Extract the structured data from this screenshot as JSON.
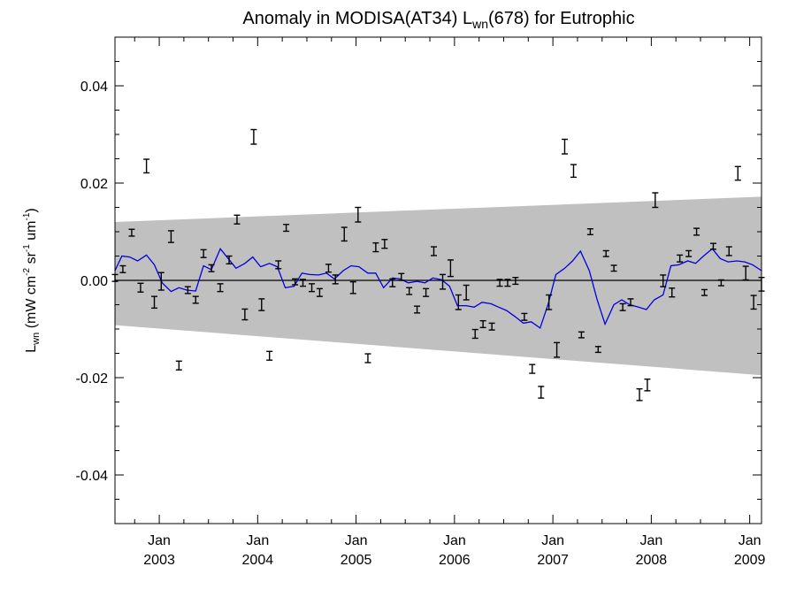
{
  "chart_data": {
    "type": "line",
    "title": {
      "prefix": "Anomaly in MODISA(AT34) L",
      "subscript": "wn",
      "suffix": "(678) for Eutrophic"
    },
    "ylabel": {
      "main": "L",
      "sub": "wn",
      "units": " (mW cm",
      "exp1": "-2",
      "u2": " sr",
      "exp2": "-1",
      "u3": " um",
      "exp3": "-1",
      "close": ")"
    },
    "xlim": [
      2002.55,
      2009.12
    ],
    "ylim": [
      -0.05,
      0.05
    ],
    "y_ticks": [
      {
        "value": 0.04,
        "label": "0.04"
      },
      {
        "value": 0.02,
        "label": "0.02"
      },
      {
        "value": 0.0,
        "label": "0.00"
      },
      {
        "value": -0.02,
        "label": "-0.02"
      },
      {
        "value": -0.04,
        "label": "-0.04"
      }
    ],
    "x_ticks": [
      {
        "value": 2003.0,
        "month": "Jan",
        "year": "2003"
      },
      {
        "value": 2004.0,
        "month": "Jan",
        "year": "2004"
      },
      {
        "value": 2005.0,
        "month": "Jan",
        "year": "2005"
      },
      {
        "value": 2006.0,
        "month": "Jan",
        "year": "2006"
      },
      {
        "value": 2007.0,
        "month": "Jan",
        "year": "2007"
      },
      {
        "value": 2008.0,
        "month": "Jan",
        "year": "2008"
      },
      {
        "value": 2009.0,
        "month": "Jan",
        "year": "2009"
      }
    ],
    "grid": false,
    "zero_line": 0.0,
    "band": {
      "x": [
        2002.55,
        2009.12
      ],
      "upper": [
        0.012,
        0.0172
      ],
      "lower": [
        -0.0092,
        -0.0195
      ],
      "color": "#c0c0c0"
    },
    "series": [
      {
        "type": "line",
        "color": "#0000dd",
        "x": [
          2002.55,
          2002.62,
          2002.7,
          2002.78,
          2002.87,
          2002.95,
          2003.03,
          2003.12,
          2003.2,
          2003.28,
          2003.37,
          2003.45,
          2003.53,
          2003.62,
          2003.7,
          2003.78,
          2003.87,
          2003.95,
          2004.03,
          2004.12,
          2004.2,
          2004.28,
          2004.37,
          2004.45,
          2004.53,
          2004.62,
          2004.7,
          2004.78,
          2004.87,
          2004.95,
          2005.03,
          2005.12,
          2005.2,
          2005.28,
          2005.37,
          2005.45,
          2005.53,
          2005.62,
          2005.7,
          2005.78,
          2005.87,
          2005.95,
          2006.03,
          2006.12,
          2006.2,
          2006.28,
          2006.37,
          2006.45,
          2006.53,
          2006.62,
          2006.7,
          2006.78,
          2006.87,
          2006.95,
          2007.03,
          2007.12,
          2007.2,
          2007.28,
          2007.37,
          2007.45,
          2007.53,
          2007.62,
          2007.7,
          2007.78,
          2007.87,
          2007.95,
          2008.03,
          2008.12,
          2008.2,
          2008.28,
          2008.37,
          2008.45,
          2008.53,
          2008.62,
          2008.7,
          2008.78,
          2008.87,
          2008.95,
          2009.03,
          2009.12
        ],
        "y": [
          0.002,
          0.005,
          0.0048,
          0.004,
          0.0052,
          0.0032,
          -0.0005,
          -0.0023,
          -0.0015,
          -0.002,
          -0.0022,
          0.003,
          0.0022,
          0.0065,
          0.0045,
          0.0025,
          0.0035,
          0.0048,
          0.0028,
          0.0035,
          0.0028,
          -0.0015,
          -0.0012,
          0.0015,
          0.0012,
          0.0011,
          0.0015,
          0.0003,
          0.002,
          0.003,
          0.0028,
          0.0015,
          0.0015,
          -0.0015,
          0.0005,
          0.0003,
          -0.0005,
          -0.0002,
          -0.0005,
          0.0005,
          0.0001,
          -0.0012,
          -0.0052,
          -0.0052,
          -0.0055,
          -0.0045,
          -0.0048,
          -0.0055,
          -0.0062,
          -0.0075,
          -0.0088,
          -0.0085,
          -0.0098,
          -0.005,
          0.0012,
          0.0025,
          0.004,
          0.006,
          0.002,
          -0.004,
          -0.009,
          -0.005,
          -0.004,
          -0.005,
          -0.0055,
          -0.006,
          -0.004,
          -0.003,
          0.003,
          0.0032,
          0.004,
          0.0035,
          0.005,
          0.0065,
          0.0045,
          0.0038,
          0.004,
          0.0038,
          0.0032,
          0.002
        ]
      },
      {
        "type": "errorbar",
        "color": "#000000",
        "x": [
          2002.55,
          2002.63,
          2002.72,
          2002.81,
          2002.87,
          2002.95,
          2003.02,
          2003.12,
          2003.2,
          2003.29,
          2003.37,
          2003.45,
          2003.53,
          2003.62,
          2003.71,
          2003.79,
          2003.87,
          2003.96,
          2004.04,
          2004.12,
          2004.21,
          2004.29,
          2004.38,
          2004.46,
          2004.55,
          2004.63,
          2004.72,
          2004.79,
          2004.88,
          2004.97,
          2005.02,
          2005.12,
          2005.2,
          2005.29,
          2005.37,
          2005.46,
          2005.54,
          2005.62,
          2005.71,
          2005.79,
          2005.88,
          2005.96,
          2006.04,
          2006.12,
          2006.21,
          2006.29,
          2006.38,
          2006.46,
          2006.54,
          2006.62,
          2006.71,
          2006.79,
          2006.88,
          2006.96,
          2007.04,
          2007.12,
          2007.21,
          2007.29,
          2007.38,
          2007.46,
          2007.54,
          2007.62,
          2007.71,
          2007.79,
          2007.88,
          2007.96,
          2008.04,
          2008.12,
          2008.21,
          2008.29,
          2008.38,
          2008.46,
          2008.54,
          2008.63,
          2008.71,
          2008.79,
          2008.88,
          2008.96,
          2009.04,
          2009.12
        ],
        "y": [
          0.0005,
          0.0023,
          0.0098,
          -0.0015,
          0.0235,
          -0.0045,
          -0.0002,
          0.009,
          -0.0175,
          -0.002,
          -0.004,
          0.0055,
          0.0025,
          -0.0015,
          0.0042,
          0.0125,
          -0.007,
          0.0295,
          -0.005,
          -0.0155,
          0.0032,
          0.0108,
          -0.0003,
          -0.0005,
          -0.0015,
          -0.0025,
          0.0025,
          0.0002,
          0.0095,
          -0.0015,
          0.0135,
          -0.016,
          0.0068,
          0.0075,
          -0.0005,
          0.0007,
          -0.0022,
          -0.006,
          -0.0025,
          0.006,
          -0.0003,
          0.0025,
          -0.0045,
          -0.0025,
          -0.011,
          -0.009,
          -0.0095,
          -0.0005,
          -0.0005,
          -0.0001,
          -0.0075,
          -0.0182,
          -0.023,
          -0.0045,
          -0.0143,
          0.0275,
          0.0225,
          -0.0112,
          0.01,
          -0.0142,
          0.0055,
          0.0025,
          -0.0055,
          -0.0045,
          -0.0235,
          -0.0215,
          0.0165,
          -0.0001,
          -0.0025,
          0.0045,
          0.0055,
          0.01,
          -0.0025,
          0.007,
          -0.0005,
          0.006,
          0.022,
          0.0015,
          -0.0045,
          -0.0008
        ],
        "err": [
          0.0007,
          0.0007,
          0.0007,
          0.0009,
          0.0014,
          0.0012,
          0.0018,
          0.0012,
          0.0009,
          0.0007,
          0.0007,
          0.0008,
          0.0007,
          0.0008,
          0.0008,
          0.0009,
          0.0011,
          0.0015,
          0.0012,
          0.0009,
          0.0008,
          0.0007,
          0.0006,
          0.0007,
          0.0008,
          0.0008,
          0.0008,
          0.0009,
          0.0014,
          0.0012,
          0.0015,
          0.0009,
          0.0009,
          0.0009,
          0.0008,
          0.0007,
          0.0007,
          0.0007,
          0.0008,
          0.0009,
          0.0015,
          0.0017,
          0.0015,
          0.0015,
          0.0009,
          0.0007,
          0.0007,
          0.0007,
          0.0007,
          0.0007,
          0.0007,
          0.0009,
          0.0012,
          0.0015,
          0.0015,
          0.0015,
          0.0013,
          0.0006,
          0.0006,
          0.0006,
          0.0006,
          0.0006,
          0.0007,
          0.0007,
          0.0012,
          0.0012,
          0.0015,
          0.0012,
          0.0009,
          0.0007,
          0.0006,
          0.0007,
          0.0006,
          0.0006,
          0.0006,
          0.0009,
          0.0014,
          0.0014,
          0.0014,
          0.0014
        ]
      }
    ]
  }
}
